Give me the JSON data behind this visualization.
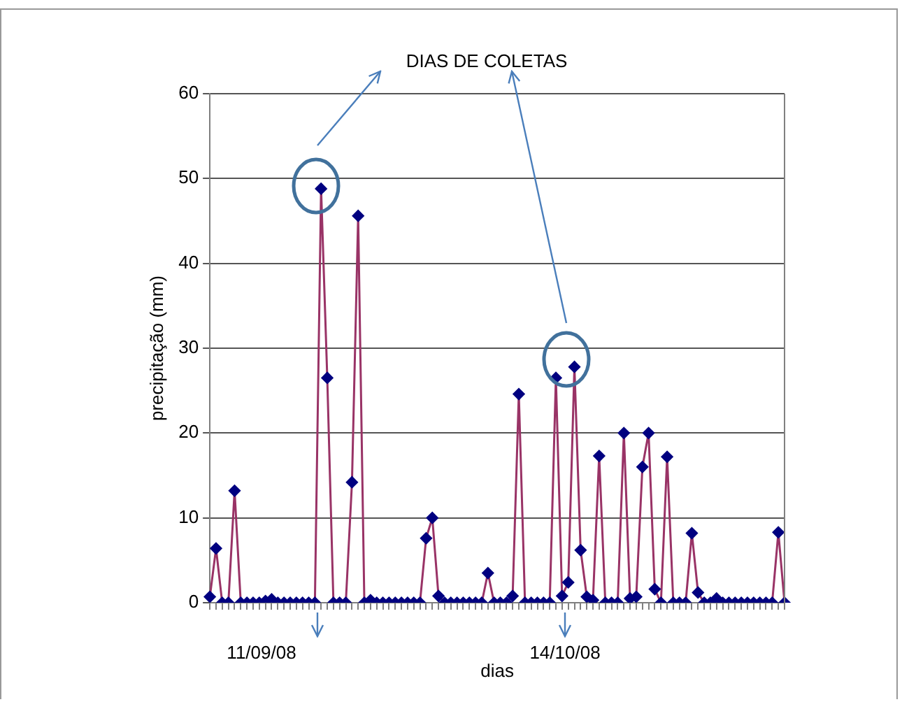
{
  "chart_data": {
    "type": "line",
    "xlabel": "dias",
    "ylabel": "precipitação (mm)",
    "annotations": [
      "DIAS DE COLETAS",
      "11/09/08",
      "14/10/08"
    ],
    "categories": [
      null,
      null,
      null,
      null,
      null,
      null,
      null,
      null,
      null,
      null,
      null,
      null,
      null,
      null,
      null,
      null,
      null,
      null,
      null,
      null,
      null,
      null,
      null,
      null,
      null,
      null,
      null,
      null,
      null,
      null,
      null,
      null,
      null,
      null,
      null,
      null,
      null,
      null,
      null,
      null,
      null,
      null,
      null,
      null,
      null,
      null,
      null,
      null,
      null,
      null,
      null,
      null,
      null,
      null,
      null,
      null,
      null,
      null,
      null,
      null,
      null,
      null,
      null,
      null,
      null,
      null,
      null,
      null,
      null,
      null,
      null,
      null,
      null,
      null,
      null,
      null,
      null,
      null,
      null,
      null,
      null,
      null,
      null,
      null,
      null,
      null,
      null,
      null,
      null,
      null,
      null,
      null,
      null,
      null
    ],
    "series": [
      {
        "color": "#000080",
        "values": [
          0.7,
          6.4,
          0,
          0,
          13.2,
          0,
          0,
          0,
          0,
          0.2,
          0.4,
          0,
          0,
          0,
          0,
          0,
          0,
          0,
          48.8,
          26.5,
          0,
          0,
          0,
          14.2,
          45.6,
          0,
          0.3,
          0,
          0,
          0,
          0,
          0,
          0,
          0,
          0,
          7.6,
          10.0,
          0.8,
          0,
          0,
          0,
          0,
          0,
          0,
          0,
          3.5,
          0,
          0,
          0,
          0.8,
          24.6,
          0,
          0,
          0,
          0,
          0,
          26.5,
          0.8,
          2.4,
          27.8,
          6.2,
          0.7,
          0.3,
          17.3,
          0,
          0,
          0,
          20.0,
          0.5,
          0.7,
          16.0,
          20.0,
          1.6,
          0,
          17.2,
          0,
          0,
          0,
          8.2,
          1.2,
          0,
          0,
          0.5,
          0,
          0,
          0,
          0,
          0,
          0,
          0,
          0,
          0,
          8.3,
          0
        ]
      }
    ],
    "ylim": [
      0,
      60
    ],
    "yticks": [
      0,
      10,
      20,
      30,
      40,
      50,
      60
    ],
    "grid": "y",
    "marker": "diamond",
    "line_style": "solid",
    "legend": false
  }
}
